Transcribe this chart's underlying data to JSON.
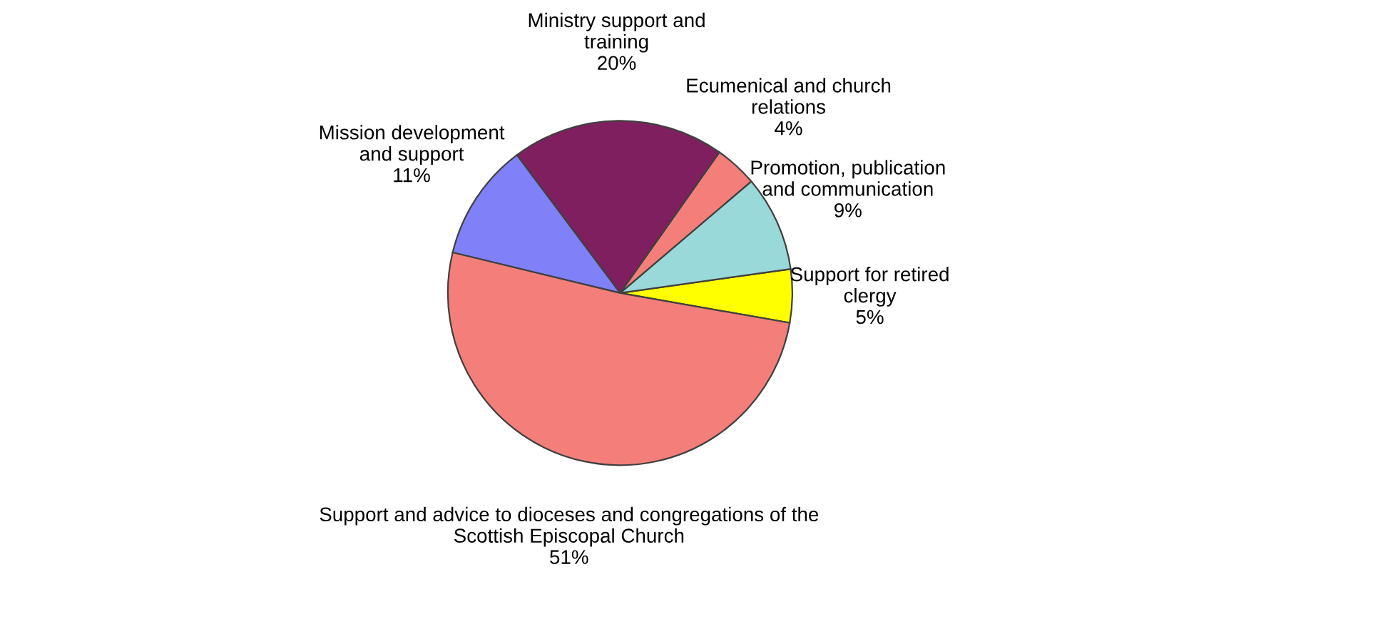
{
  "chart_data": {
    "type": "pie",
    "categories": [
      "Support for retired clergy",
      "Promotion, publication and communication",
      "Ecumenical and church relations",
      "Ministry support and training",
      "Mission development and support",
      "Support and advice to dioceses and congregations of the Scottish Episcopal Church"
    ],
    "values": [
      5,
      9,
      4,
      20,
      11,
      51
    ],
    "value_labels": [
      "5%",
      "9%",
      "4%",
      "20%",
      "11%",
      "51%"
    ],
    "colors": [
      "#ffff00",
      "#99d9d9",
      "#f47f7a",
      "#7f1f5f",
      "#8080f8",
      "#f47f7a"
    ]
  }
}
